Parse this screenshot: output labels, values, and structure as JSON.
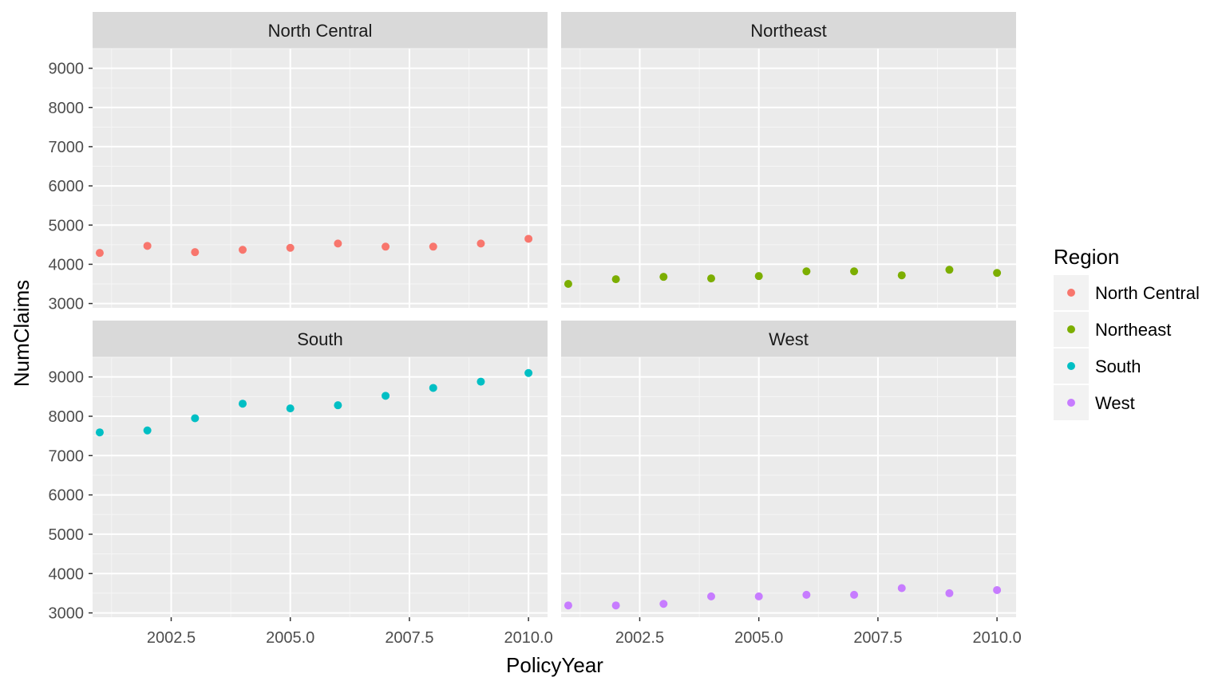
{
  "chart_data": {
    "type": "scatter",
    "faceted": true,
    "xlabel": "PolicyYear",
    "ylabel": "NumClaims",
    "xlim": [
      2000.85,
      2010.4
    ],
    "xticks": [
      2002.5,
      2005.0,
      2007.5,
      2010.0
    ],
    "xtick_labels": [
      "2002.5",
      "2005.0",
      "2007.5",
      "2010.0"
    ],
    "ylim": [
      2890,
      9500
    ],
    "yticks": [
      3000,
      4000,
      5000,
      6000,
      7000,
      8000,
      9000
    ],
    "ytick_labels": [
      "3000",
      "4000",
      "5000",
      "6000",
      "7000",
      "8000",
      "9000"
    ],
    "grid": true,
    "background": "#ebebeb",
    "strip_background": "#d9d9d9",
    "legend": {
      "title": "Region",
      "position": "right",
      "entries": [
        "North Central",
        "Northeast",
        "South",
        "West"
      ]
    },
    "series": [
      {
        "name": "North Central",
        "color": "#F8766D",
        "x": [
          2001,
          2002,
          2003,
          2004,
          2005,
          2006,
          2007,
          2008,
          2009,
          2010
        ],
        "y": [
          4290,
          4470,
          4310,
          4370,
          4420,
          4530,
          4450,
          4450,
          4530,
          4650
        ]
      },
      {
        "name": "Northeast",
        "color": "#7CAE00",
        "x": [
          2001,
          2002,
          2003,
          2004,
          2005,
          2006,
          2007,
          2008,
          2009,
          2010
        ],
        "y": [
          3500,
          3620,
          3680,
          3640,
          3700,
          3820,
          3820,
          3720,
          3860,
          3780
        ]
      },
      {
        "name": "South",
        "color": "#00BFC4",
        "x": [
          2001,
          2002,
          2003,
          2004,
          2005,
          2006,
          2007,
          2008,
          2009,
          2010
        ],
        "y": [
          7590,
          7640,
          7950,
          8320,
          8200,
          8280,
          8520,
          8720,
          8880,
          9100
        ]
      },
      {
        "name": "West",
        "color": "#C77CFF",
        "x": [
          2001,
          2002,
          2003,
          2004,
          2005,
          2006,
          2007,
          2008,
          2009,
          2010
        ],
        "y": [
          3190,
          3190,
          3230,
          3420,
          3420,
          3460,
          3460,
          3630,
          3500,
          3580
        ]
      }
    ]
  }
}
